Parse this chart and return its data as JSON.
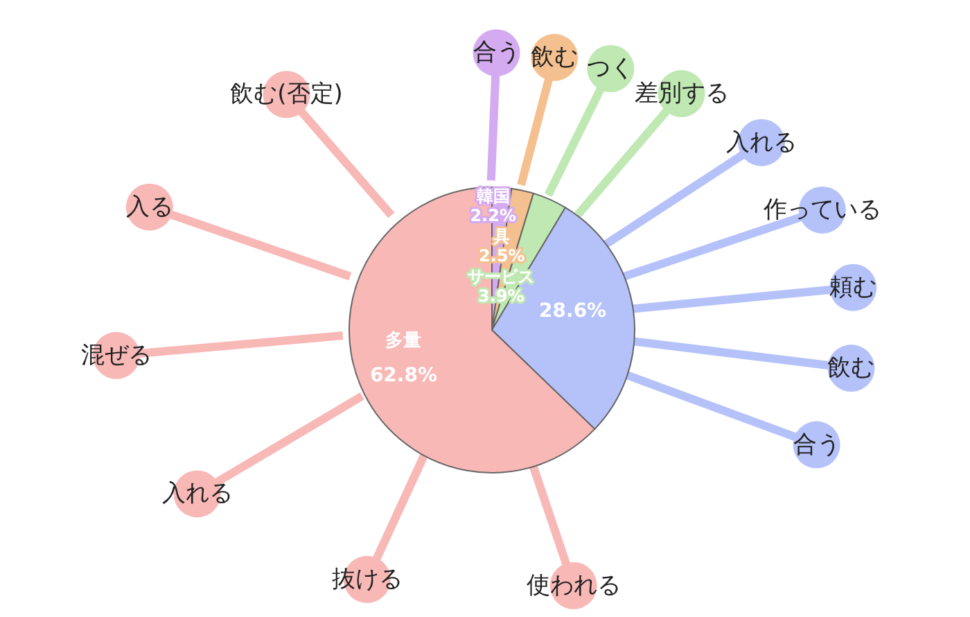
{
  "chart_data": {
    "type": "pie",
    "categories": [
      "韓国",
      "具",
      "サービス",
      null,
      "多量"
    ],
    "values": [
      2.2,
      2.5,
      3.9,
      28.6,
      62.8
    ],
    "value_labels": [
      "2.2%",
      "2.5%",
      "3.9%",
      "28.6%",
      "62.8%"
    ],
    "colors": [
      "#d4aaf0",
      "#f5c08f",
      "#bfe8b2",
      "#b5c2fa",
      "#f8b8b6"
    ],
    "annotations": [
      {
        "text": "合う",
        "x": "韓国"
      },
      {
        "text": "飲む",
        "x": "具"
      },
      {
        "text": "つく",
        "x": "サービス"
      },
      {
        "text": "差別する",
        "x": "サービス"
      },
      {
        "text": "入れる"
      },
      {
        "text": "作っている"
      },
      {
        "text": "頼む"
      },
      {
        "text": "飲む"
      },
      {
        "text": "合う"
      },
      {
        "text": "使われる",
        "x": "多量"
      },
      {
        "text": "抜ける",
        "x": "多量"
      },
      {
        "text": "入れる",
        "x": "多量"
      },
      {
        "text": "混ぜる",
        "x": "多量"
      },
      {
        "text": "入る",
        "x": "多量"
      },
      {
        "text": "飲む(否定)",
        "x": "多量"
      }
    ]
  }
}
